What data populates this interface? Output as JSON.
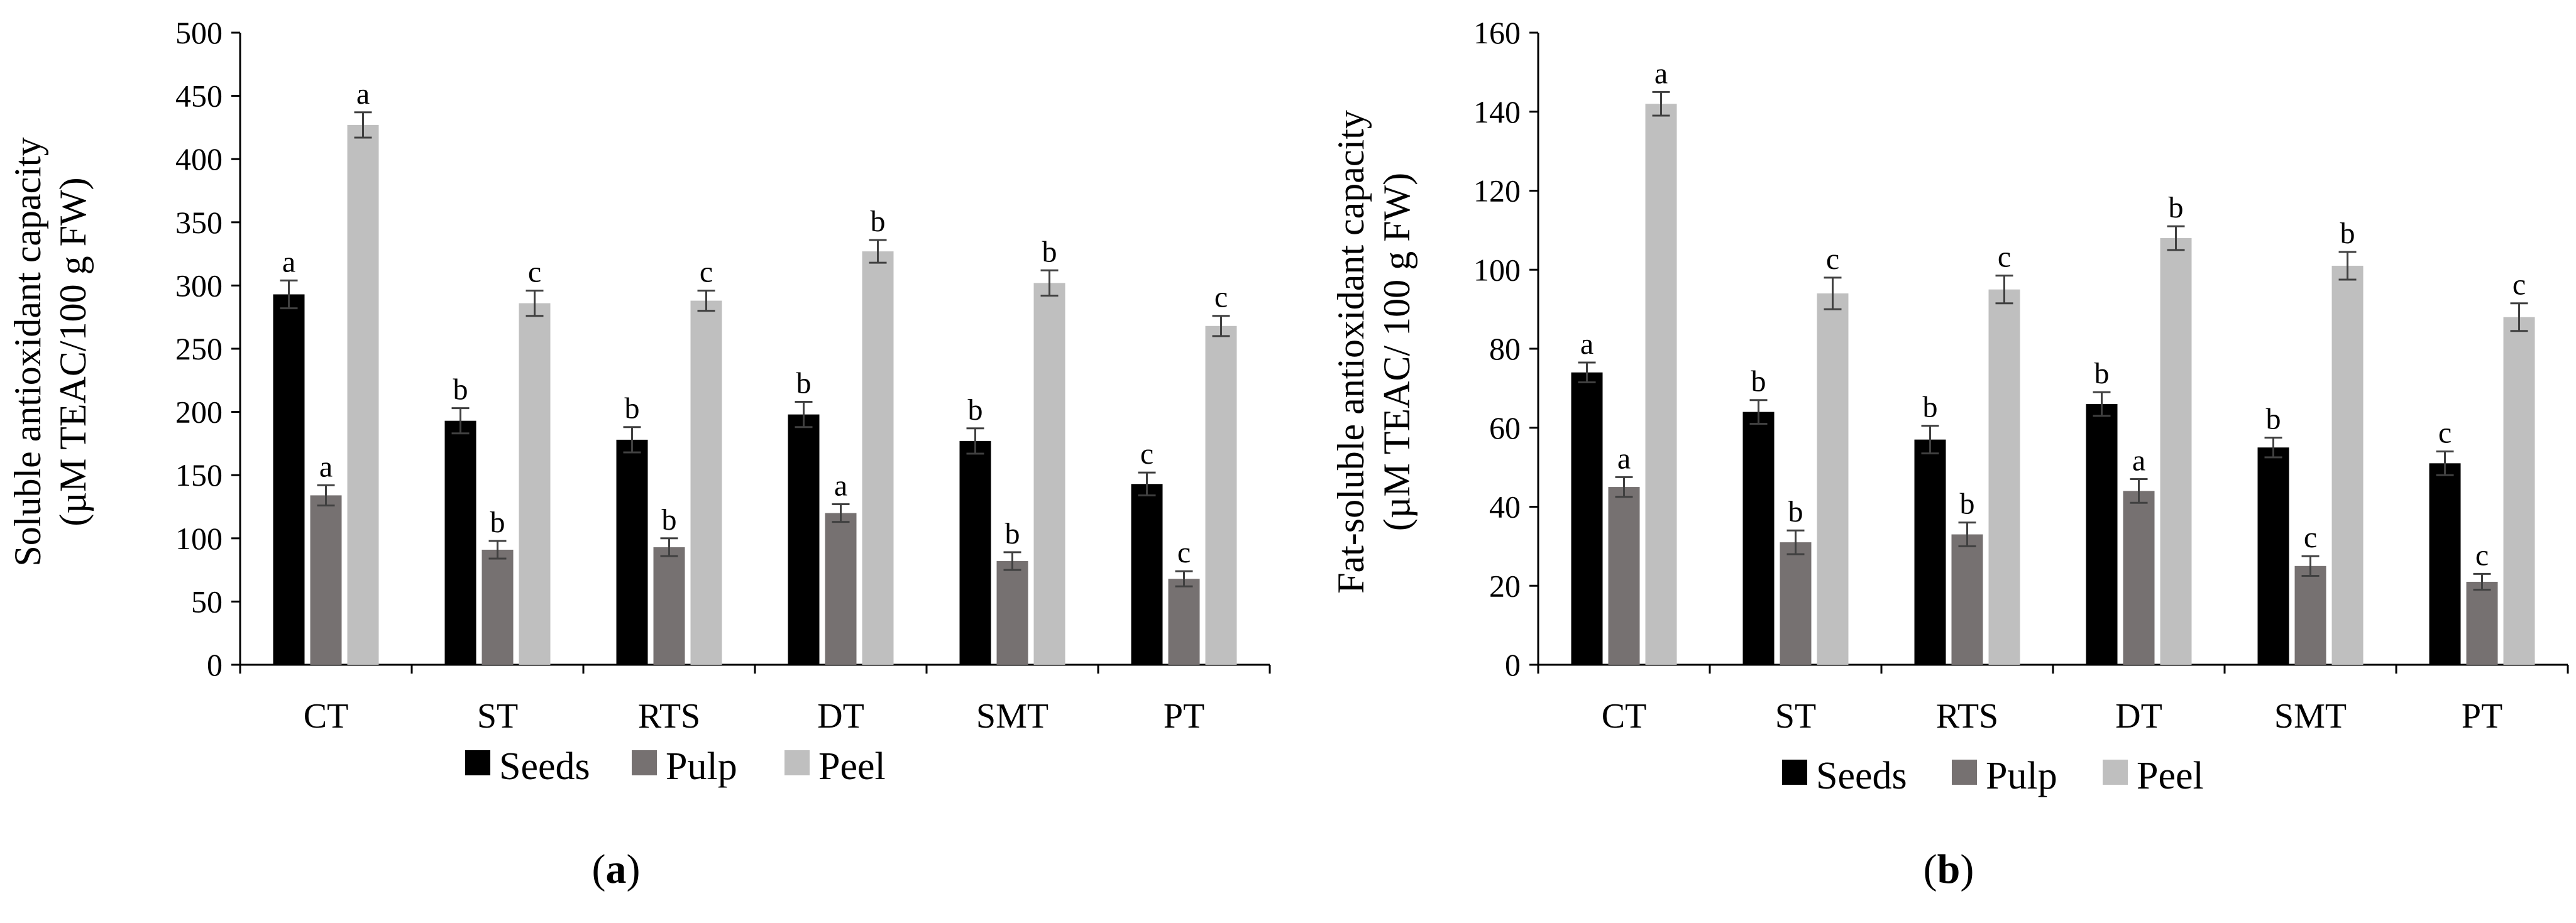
{
  "figure": {
    "panels": [
      {
        "label": "a",
        "ylabel_line1": "Soluble antioxidant capacity",
        "ylabel_line2": "(µM TEAC/100 g FW)"
      },
      {
        "label": "b",
        "ylabel_line1": "Fat-soluble antioxidant capacity",
        "ylabel_line2": "(µM TEAC/ 100 g FW)"
      }
    ]
  },
  "chart_data": [
    {
      "type": "bar",
      "title": "",
      "panel_label": "a",
      "categories": [
        "CT",
        "ST",
        "RTS",
        "DT",
        "SMT",
        "PT"
      ],
      "ylabel": "Soluble antioxidant capacity (µM TEAC/100 g FW)",
      "xlabel": "",
      "ylim": [
        0,
        500
      ],
      "yticks": [
        0,
        50,
        100,
        150,
        200,
        250,
        300,
        350,
        400,
        450,
        500
      ],
      "grid": false,
      "legend": "bottom",
      "series": [
        {
          "name": "Seeds",
          "color": "#000000",
          "values": [
            293,
            193,
            178,
            198,
            177,
            143
          ],
          "errors": [
            11,
            10,
            10,
            10,
            10,
            9
          ],
          "labels": [
            "a",
            "b",
            "b",
            "b",
            "b",
            "c"
          ]
        },
        {
          "name": "Pulp",
          "color": "#767171",
          "values": [
            134,
            91,
            93,
            120,
            82,
            68
          ],
          "errors": [
            8,
            7,
            7,
            7,
            7,
            6
          ],
          "labels": [
            "a",
            "b",
            "b",
            "a",
            "b",
            "c"
          ]
        },
        {
          "name": "Peel",
          "color": "#bfbfbf",
          "values": [
            427,
            286,
            288,
            327,
            302,
            268
          ],
          "errors": [
            10,
            10,
            8,
            9,
            10,
            8
          ],
          "labels": [
            "a",
            "c",
            "c",
            "b",
            "b",
            "c"
          ]
        }
      ]
    },
    {
      "type": "bar",
      "title": "",
      "panel_label": "b",
      "categories": [
        "CT",
        "ST",
        "RTS",
        "DT",
        "SMT",
        "PT"
      ],
      "ylabel": "Fat-soluble antioxidant capacity (µM TEAC/ 100 g FW)",
      "xlabel": "",
      "ylim": [
        0,
        160
      ],
      "yticks": [
        0,
        20,
        40,
        60,
        80,
        100,
        120,
        140,
        160
      ],
      "grid": false,
      "legend": "bottom",
      "series": [
        {
          "name": "Seeds",
          "color": "#000000",
          "values": [
            74,
            64,
            57,
            66,
            55,
            51
          ],
          "errors": [
            2.5,
            3,
            3.5,
            3,
            2.5,
            3
          ],
          "labels": [
            "a",
            "b",
            "b",
            "b",
            "b",
            "c"
          ]
        },
        {
          "name": "Pulp",
          "color": "#767171",
          "values": [
            45,
            31,
            33,
            44,
            25,
            21
          ],
          "errors": [
            2.5,
            3,
            3,
            3,
            2.5,
            2
          ],
          "labels": [
            "a",
            "b",
            "b",
            "a",
            "c",
            "c"
          ]
        },
        {
          "name": "Peel",
          "color": "#bfbfbf",
          "values": [
            142,
            94,
            95,
            108,
            101,
            88
          ],
          "errors": [
            3,
            4,
            3.5,
            3,
            3.5,
            3.5
          ],
          "labels": [
            "a",
            "c",
            "c",
            "b",
            "b",
            "c"
          ]
        }
      ]
    }
  ]
}
